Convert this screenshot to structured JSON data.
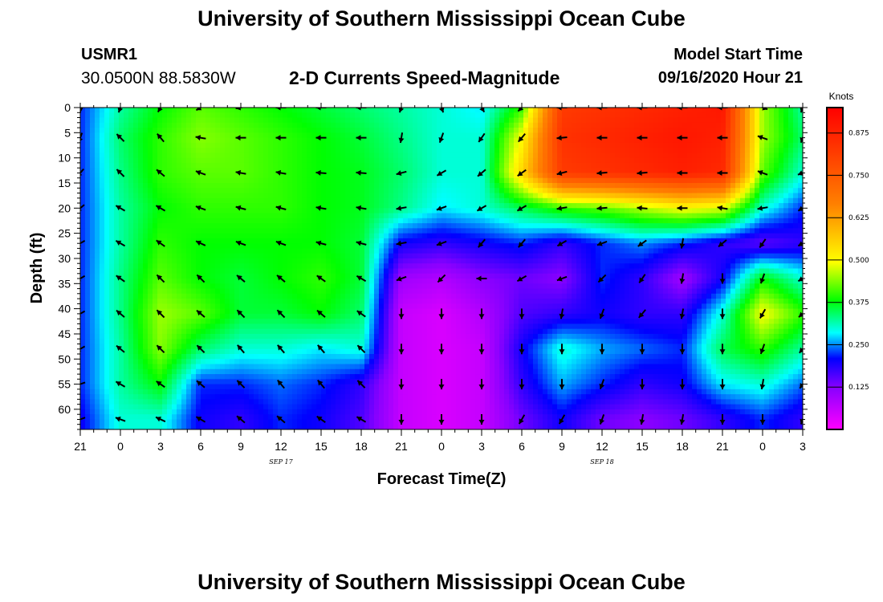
{
  "header": {
    "title": "University of Southern Mississippi Ocean Cube",
    "footer_title": "University of Southern Mississippi Ocean Cube",
    "station_id": "USMR1",
    "station_coords": "30.0500N 88.5830W",
    "subtitle": "2-D Currents Speed-Magnitude",
    "model_start_label": "Model Start Time",
    "model_start_value": "09/16/2020 Hour 21"
  },
  "chart_data": {
    "type": "heatmap",
    "title": "2-D Currents Speed-Magnitude",
    "xlabel": "Forecast Time(Z)",
    "ylabel": "Depth (ft)",
    "x_tick_labels": [
      "21",
      "0",
      "3",
      "6",
      "9",
      "12",
      "15",
      "18",
      "21",
      "0",
      "3",
      "6",
      "9",
      "12",
      "15",
      "18",
      "21",
      "0",
      "3"
    ],
    "x_range_hours": [
      0,
      54
    ],
    "date_labels": [
      {
        "text": "SEP 17",
        "hour": 15
      },
      {
        "text": "SEP 18",
        "hour": 39
      }
    ],
    "y_tick_labels": [
      0,
      5,
      10,
      15,
      20,
      25,
      30,
      35,
      40,
      45,
      50,
      55,
      60
    ],
    "ylim": [
      0,
      64
    ],
    "y_inverted": true,
    "colorbar": {
      "unit": "Knots",
      "range": [
        0,
        0.95
      ],
      "tick_labels": [
        "0.875",
        "0.750",
        "0.625",
        "0.500",
        "0.375",
        "0.250",
        "0.125"
      ],
      "tick_values": [
        0.875,
        0.75,
        0.625,
        0.5,
        0.375,
        0.25,
        0.125
      ],
      "colors": [
        "#ff00ff",
        "#8800ff",
        "#0000ff",
        "#00ffff",
        "#00ff00",
        "#ffff00",
        "#ff8000",
        "#ff0000"
      ]
    },
    "grid_hours": [
      0,
      3,
      6,
      9,
      12,
      15,
      18,
      21,
      24,
      27,
      30,
      33,
      36,
      39,
      42,
      45,
      48,
      51,
      54
    ],
    "grid_depths": [
      0,
      6,
      13,
      20,
      27,
      34,
      41,
      48,
      55,
      62
    ],
    "speed_knots": [
      [
        0.22,
        0.32,
        0.38,
        0.42,
        0.4,
        0.38,
        0.36,
        0.34,
        0.32,
        0.3,
        0.28,
        0.4,
        0.82,
        0.84,
        0.86,
        0.88,
        0.9,
        0.45,
        0.32
      ],
      [
        0.22,
        0.34,
        0.4,
        0.44,
        0.42,
        0.4,
        0.38,
        0.36,
        0.33,
        0.3,
        0.3,
        0.5,
        0.84,
        0.86,
        0.88,
        0.9,
        0.88,
        0.45,
        0.34
      ],
      [
        0.22,
        0.33,
        0.4,
        0.42,
        0.42,
        0.4,
        0.38,
        0.37,
        0.34,
        0.3,
        0.3,
        0.55,
        0.82,
        0.84,
        0.86,
        0.88,
        0.86,
        0.42,
        0.3
      ],
      [
        0.22,
        0.32,
        0.38,
        0.4,
        0.4,
        0.4,
        0.38,
        0.37,
        0.33,
        0.28,
        0.3,
        0.35,
        0.4,
        0.42,
        0.46,
        0.5,
        0.48,
        0.3,
        0.22
      ],
      [
        0.22,
        0.32,
        0.4,
        0.38,
        0.38,
        0.38,
        0.38,
        0.36,
        0.2,
        0.18,
        0.2,
        0.22,
        0.18,
        0.22,
        0.25,
        0.22,
        0.18,
        0.15,
        0.18
      ],
      [
        0.22,
        0.33,
        0.42,
        0.38,
        0.36,
        0.38,
        0.4,
        0.36,
        0.1,
        0.08,
        0.12,
        0.14,
        0.12,
        0.22,
        0.18,
        0.1,
        0.2,
        0.38,
        0.3
      ],
      [
        0.22,
        0.33,
        0.45,
        0.42,
        0.36,
        0.36,
        0.38,
        0.34,
        0.06,
        0.04,
        0.08,
        0.16,
        0.18,
        0.2,
        0.18,
        0.18,
        0.3,
        0.5,
        0.4
      ],
      [
        0.22,
        0.32,
        0.44,
        0.34,
        0.3,
        0.3,
        0.28,
        0.3,
        0.06,
        0.04,
        0.06,
        0.2,
        0.3,
        0.26,
        0.24,
        0.22,
        0.35,
        0.4,
        0.32
      ],
      [
        0.22,
        0.32,
        0.38,
        0.22,
        0.22,
        0.24,
        0.22,
        0.18,
        0.06,
        0.04,
        0.06,
        0.18,
        0.26,
        0.22,
        0.18,
        0.2,
        0.28,
        0.3,
        0.24
      ],
      [
        0.2,
        0.3,
        0.3,
        0.2,
        0.18,
        0.22,
        0.2,
        0.16,
        0.06,
        0.04,
        0.06,
        0.14,
        0.2,
        0.14,
        0.12,
        0.14,
        0.18,
        0.22,
        0.18
      ]
    ],
    "direction_deg": [
      [
        180,
        200,
        210,
        240,
        260,
        270,
        270,
        270,
        200,
        160,
        150,
        225,
        270,
        270,
        270,
        270,
        270,
        110,
        200
      ],
      [
        200,
        315,
        320,
        280,
        270,
        270,
        270,
        270,
        190,
        200,
        215,
        220,
        265,
        270,
        270,
        270,
        270,
        290,
        200
      ],
      [
        220,
        315,
        310,
        290,
        280,
        280,
        275,
        275,
        255,
        240,
        230,
        235,
        255,
        265,
        265,
        270,
        270,
        290,
        250
      ],
      [
        230,
        300,
        300,
        290,
        285,
        285,
        280,
        280,
        260,
        250,
        240,
        240,
        260,
        265,
        275,
        270,
        280,
        260,
        240
      ],
      [
        240,
        300,
        305,
        295,
        290,
        290,
        285,
        285,
        260,
        250,
        220,
        220,
        240,
        250,
        235,
        190,
        230,
        215,
        240
      ],
      [
        240,
        305,
        315,
        315,
        310,
        310,
        305,
        300,
        250,
        225,
        270,
        240,
        250,
        225,
        215,
        190,
        180,
        200,
        240
      ],
      [
        240,
        310,
        315,
        310,
        315,
        315,
        310,
        305,
        180,
        180,
        180,
        180,
        190,
        200,
        220,
        190,
        180,
        210,
        230
      ],
      [
        240,
        310,
        315,
        315,
        320,
        320,
        320,
        315,
        180,
        180,
        180,
        180,
        180,
        180,
        180,
        180,
        180,
        200,
        220
      ],
      [
        250,
        300,
        305,
        310,
        315,
        320,
        320,
        315,
        180,
        180,
        180,
        180,
        180,
        200,
        180,
        180,
        180,
        190,
        215
      ],
      [
        250,
        290,
        295,
        300,
        310,
        310,
        305,
        300,
        180,
        180,
        180,
        210,
        210,
        200,
        190,
        190,
        180,
        180,
        200
      ]
    ]
  }
}
